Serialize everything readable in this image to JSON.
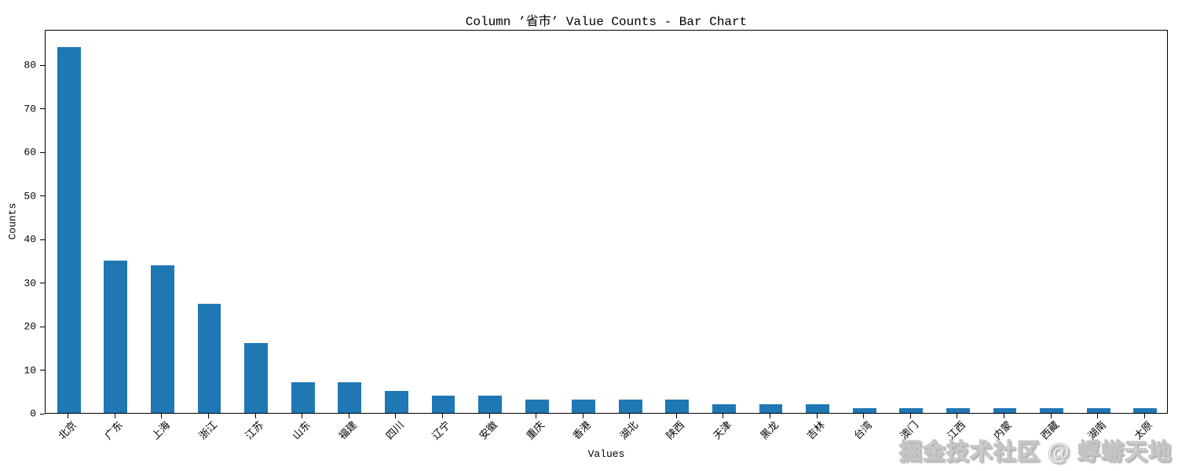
{
  "watermark": "掘金技术社区 @ 蜉蝣天地",
  "chart_data": {
    "type": "bar",
    "title": "Column ’省市’ Value Counts - Bar Chart",
    "xlabel": "Values",
    "ylabel": "Counts",
    "categories": [
      "北京",
      "广东",
      "上海",
      "浙江",
      "江苏",
      "山东",
      "福建",
      "四川",
      "辽宁",
      "安徽",
      "重庆",
      "香港",
      "湖北",
      "陕西",
      "天津",
      "黑龙",
      "吉林",
      "台湾",
      "澳门",
      "江西",
      "内蒙",
      "西藏",
      "湖南",
      "太原"
    ],
    "values": [
      84,
      35,
      34,
      25,
      16,
      7,
      7,
      5,
      4,
      4,
      3,
      3,
      3,
      3,
      2,
      2,
      2,
      1,
      1,
      1,
      1,
      1,
      1,
      1
    ],
    "yticks": [
      0,
      10,
      20,
      30,
      40,
      50,
      60,
      70,
      80
    ],
    "ylim": [
      0,
      88.2
    ],
    "bar_color": "#1f77b4",
    "grid": false,
    "legend": "none",
    "x_tick_rotation": 45
  }
}
